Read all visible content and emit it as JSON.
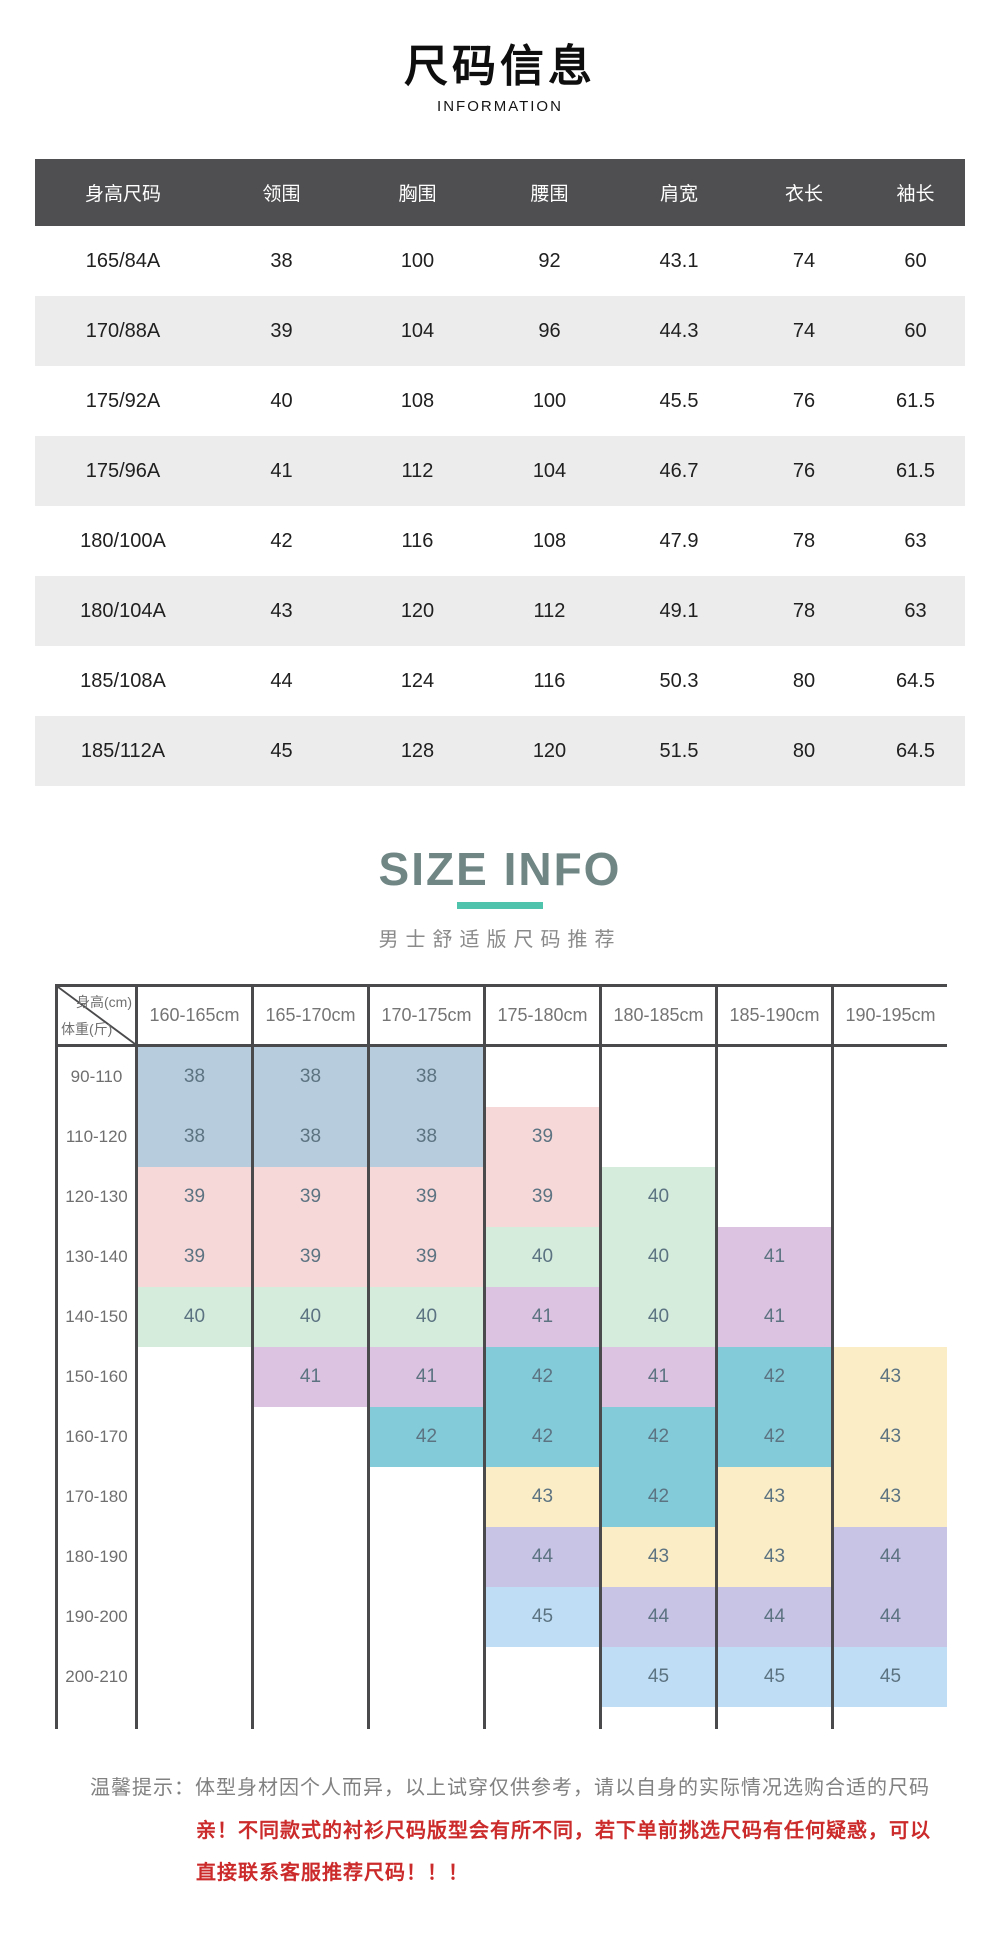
{
  "page": {
    "title": "尺码信息",
    "subtitle": "INFORMATION"
  },
  "size_table": {
    "headers": [
      "身高尺码",
      "领围",
      "胸围",
      "腰围",
      "肩宽",
      "衣长",
      "袖长"
    ],
    "rows": [
      [
        "165/84A",
        "38",
        "100",
        "92",
        "43.1",
        "74",
        "60"
      ],
      [
        "170/88A",
        "39",
        "104",
        "96",
        "44.3",
        "74",
        "60"
      ],
      [
        "175/92A",
        "40",
        "108",
        "100",
        "45.5",
        "76",
        "61.5"
      ],
      [
        "175/96A",
        "41",
        "112",
        "104",
        "46.7",
        "76",
        "61.5"
      ],
      [
        "180/100A",
        "42",
        "116",
        "108",
        "47.9",
        "78",
        "63"
      ],
      [
        "180/104A",
        "43",
        "120",
        "112",
        "49.1",
        "78",
        "63"
      ],
      [
        "185/108A",
        "44",
        "124",
        "116",
        "50.3",
        "80",
        "64.5"
      ],
      [
        "185/112A",
        "45",
        "128",
        "120",
        "51.5",
        "80",
        "64.5"
      ]
    ]
  },
  "size_info": {
    "title": "SIZE INFO",
    "subtitle": "男士舒适版尺码推荐"
  },
  "matrix": {
    "corner": {
      "top": "身高(cm)",
      "bottom": "体重(斤)"
    },
    "columns": [
      "160-165cm",
      "165-170cm",
      "170-175cm",
      "175-180cm",
      "180-185cm",
      "185-190cm",
      "190-195cm"
    ],
    "row_labels": [
      "90-110",
      "110-120",
      "120-130",
      "130-140",
      "140-150",
      "150-160",
      "160-170",
      "170-180",
      "180-190",
      "190-200",
      "200-210"
    ],
    "cells": [
      [
        "38",
        "38",
        "38",
        "",
        "",
        "",
        ""
      ],
      [
        "38",
        "38",
        "38",
        "39",
        "",
        "",
        ""
      ],
      [
        "39",
        "39",
        "39",
        "39",
        "40",
        "",
        ""
      ],
      [
        "39",
        "39",
        "39",
        "40",
        "40",
        "41",
        ""
      ],
      [
        "40",
        "40",
        "40",
        "41",
        "40",
        "41",
        ""
      ],
      [
        "",
        "41",
        "41",
        "42",
        "41",
        "42",
        "43"
      ],
      [
        "",
        "",
        "42",
        "42",
        "42",
        "42",
        "43"
      ],
      [
        "",
        "",
        "",
        "43",
        "42",
        "43",
        "43"
      ],
      [
        "",
        "",
        "",
        "44",
        "43",
        "43",
        "44"
      ],
      [
        "",
        "",
        "",
        "45",
        "44",
        "44",
        "44"
      ],
      [
        "",
        "",
        "",
        "",
        "45",
        "45",
        "45"
      ]
    ],
    "size_colors": {
      "38": "#b7cddd",
      "39": "#f7d8d8",
      "40": "#d5ecdd",
      "41": "#dcc3e2",
      "42": "#83cbd9",
      "43": "#fbeec6",
      "44": "#c8c4e5",
      "45": "#bfdef5"
    }
  },
  "footer": {
    "line1": "温馨提示：体型身材因个人而异，以上试穿仅供参考，请以自身的实际情况选购合适的尺码",
    "line2": "亲！不同款式的衬衫尺码版型会有所不同，若下单前挑选尺码有任何疑惑，可以",
    "line3": "直接联系客服推荐尺码！！！"
  },
  "colors": {
    "table_header_bg": "#4f4f51",
    "table_stripe_bg": "#ececec",
    "size_info_title": "#6f8685",
    "underline": "#4fc3ab",
    "grid_line": "#4a4a4c",
    "cell_text": "#5c7382",
    "label_text": "#6f6f6f",
    "tip_gray": "#818181",
    "tip_red": "#cc2b2b"
  }
}
